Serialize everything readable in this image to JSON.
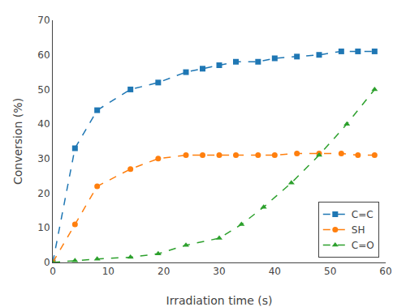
{
  "chart_data": {
    "type": "line",
    "xlabel": "Irradiation time (s)",
    "ylabel": "Conversion (%)",
    "series": [
      {
        "name": "C=C",
        "marker": "square",
        "line_style": "dashed",
        "x": [
          0,
          4,
          8,
          14,
          19,
          24,
          27,
          30,
          33,
          37,
          40,
          44,
          48,
          52,
          55,
          58
        ],
        "values": [
          0,
          33,
          44,
          50,
          52,
          55,
          56,
          57,
          58,
          58,
          59,
          59.5,
          60,
          61,
          61,
          61
        ]
      },
      {
        "name": "SH",
        "marker": "circle",
        "line_style": "dashed",
        "x": [
          0,
          4,
          8,
          14,
          19,
          24,
          27,
          30,
          33,
          37,
          40,
          44,
          48,
          52,
          55,
          58
        ],
        "values": [
          0,
          11,
          22,
          27,
          30,
          31,
          31,
          31,
          31,
          31,
          31,
          31.5,
          31.5,
          31.5,
          31,
          31
        ]
      },
      {
        "name": "C=O",
        "marker": "triangle",
        "line_style": "dashed",
        "x": [
          0,
          4,
          8,
          14,
          19,
          24,
          30,
          34,
          38,
          43,
          48,
          53,
          58
        ],
        "values": [
          0,
          0.5,
          1,
          1.5,
          2.5,
          5,
          7,
          11,
          16,
          23,
          31,
          40,
          50
        ]
      }
    ],
    "xlim": [
      0,
      60
    ],
    "ylim": [
      0,
      70
    ],
    "xticks": [
      0,
      10,
      20,
      30,
      40,
      50,
      60
    ],
    "yticks": [
      0,
      10,
      20,
      30,
      40,
      50,
      60,
      70
    ],
    "legend": "lower right",
    "grid": false
  }
}
